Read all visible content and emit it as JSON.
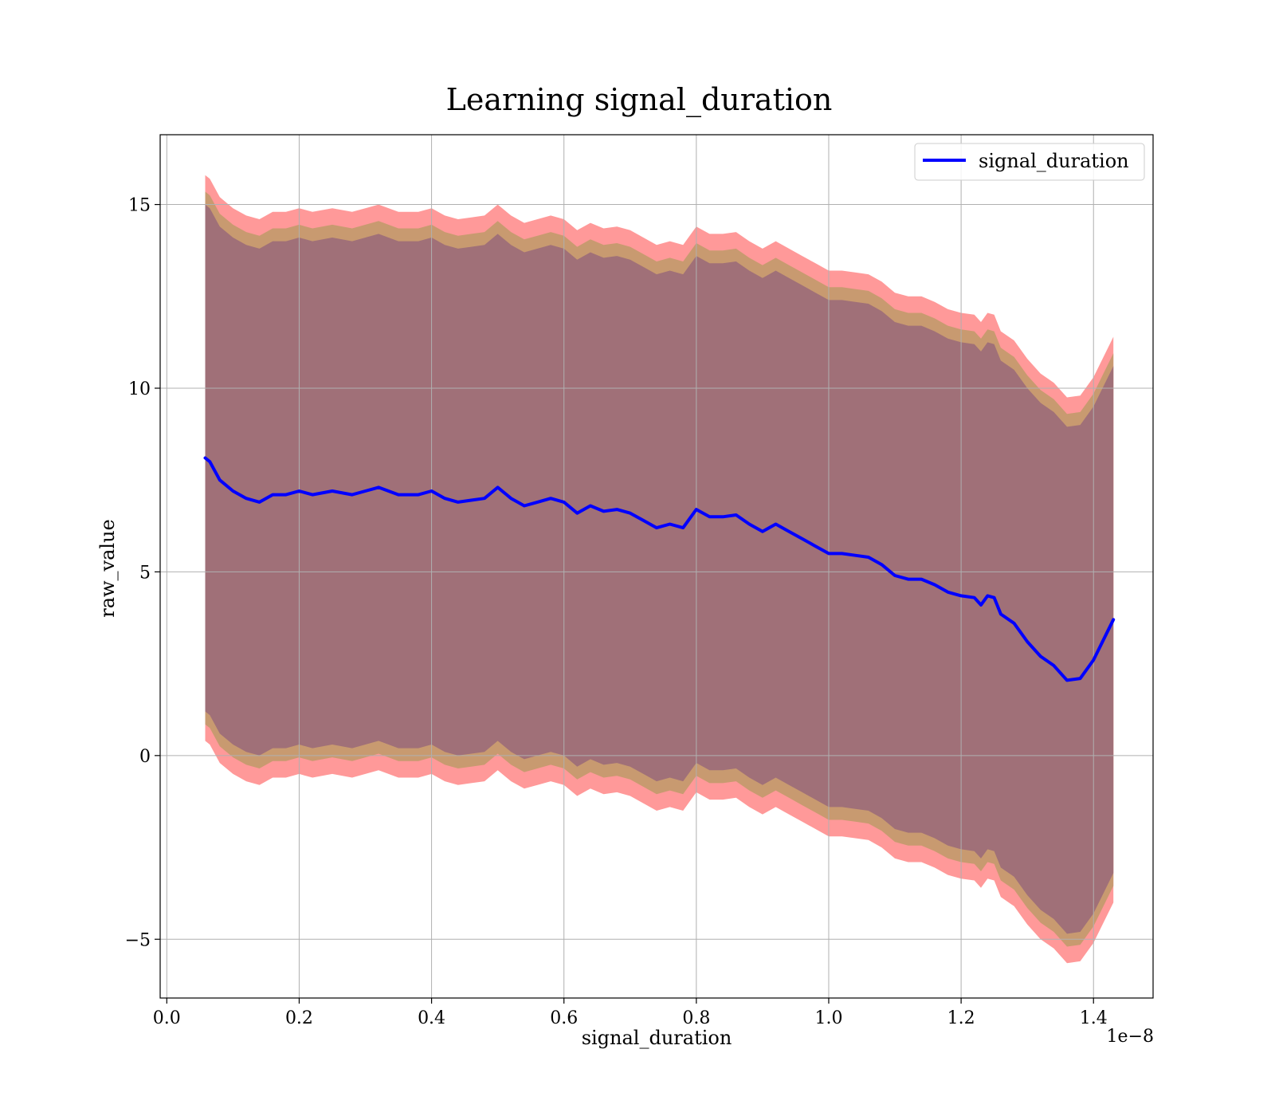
{
  "chart_data": {
    "type": "line",
    "title": "Learning signal_duration",
    "xlabel": "signal_duration",
    "ylabel": "raw_value",
    "x_offset_label": "1e−8",
    "xlim": [
      -0.01,
      1.49
    ],
    "ylim": [
      -6.6,
      16.9
    ],
    "x_ticks": [
      0.0,
      0.2,
      0.4,
      0.6,
      0.8,
      1.0,
      1.2,
      1.4
    ],
    "x_tick_labels": [
      "0.0",
      "0.2",
      "0.4",
      "0.6",
      "0.8",
      "1.0",
      "1.2",
      "1.4"
    ],
    "y_ticks": [
      -5,
      0,
      5,
      10,
      15
    ],
    "y_tick_labels": [
      "−5",
      "0",
      "5",
      "10",
      "15"
    ],
    "grid": true,
    "legend": {
      "position": "top-right",
      "entries": [
        "signal_duration"
      ]
    },
    "colors": {
      "line": "#0000ff",
      "band_outer": "#ff9999",
      "band_middle": "#c89a70",
      "band_inner": "#a07078",
      "grid": "#b0b0b0"
    },
    "series": [
      {
        "name": "signal_duration",
        "x": [
          0.058,
          0.065,
          0.08,
          0.1,
          0.12,
          0.14,
          0.16,
          0.18,
          0.2,
          0.22,
          0.25,
          0.28,
          0.3,
          0.32,
          0.35,
          0.38,
          0.4,
          0.42,
          0.44,
          0.46,
          0.48,
          0.5,
          0.52,
          0.54,
          0.56,
          0.58,
          0.6,
          0.62,
          0.64,
          0.66,
          0.68,
          0.7,
          0.72,
          0.74,
          0.76,
          0.78,
          0.8,
          0.82,
          0.84,
          0.86,
          0.88,
          0.9,
          0.92,
          0.94,
          0.96,
          0.98,
          1.0,
          1.02,
          1.04,
          1.06,
          1.08,
          1.1,
          1.12,
          1.14,
          1.16,
          1.18,
          1.2,
          1.22,
          1.23,
          1.24,
          1.25,
          1.26,
          1.28,
          1.3,
          1.32,
          1.34,
          1.36,
          1.38,
          1.4,
          1.43
        ],
        "y": [
          8.1,
          8.0,
          7.5,
          7.2,
          7.0,
          6.9,
          7.1,
          7.1,
          7.2,
          7.1,
          7.2,
          7.1,
          7.2,
          7.3,
          7.1,
          7.1,
          7.2,
          7.0,
          6.9,
          6.95,
          7.0,
          7.3,
          7.0,
          6.8,
          6.9,
          7.0,
          6.9,
          6.6,
          6.8,
          6.65,
          6.7,
          6.6,
          6.4,
          6.2,
          6.3,
          6.2,
          6.7,
          6.5,
          6.5,
          6.55,
          6.3,
          6.1,
          6.3,
          6.1,
          5.9,
          5.7,
          5.5,
          5.5,
          5.45,
          5.4,
          5.2,
          4.9,
          4.8,
          4.8,
          4.65,
          4.45,
          4.35,
          4.3,
          4.1,
          4.35,
          4.3,
          3.85,
          3.6,
          3.1,
          2.7,
          2.45,
          2.05,
          2.1,
          2.6,
          3.7
        ]
      }
    ],
    "bands": [
      {
        "name": "outer",
        "lower_offset": -7.7,
        "upper_offset": 7.7
      },
      {
        "name": "middle",
        "lower_offset": -7.25,
        "upper_offset": 7.25
      },
      {
        "name": "inner",
        "lower_offset": -6.9,
        "upper_offset": 6.9
      }
    ]
  }
}
